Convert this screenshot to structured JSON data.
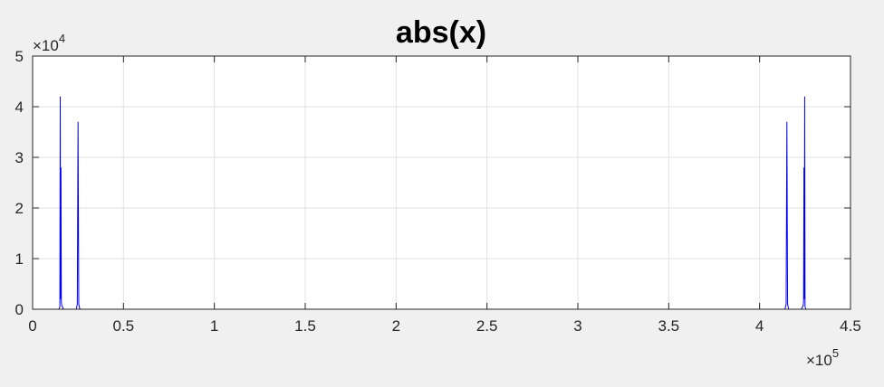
{
  "chart_data": {
    "type": "line",
    "title": "abs(x)",
    "xlabel": "",
    "ylabel": "",
    "xlim": [
      0,
      450000
    ],
    "ylim": [
      0,
      50000
    ],
    "grid": true,
    "line_color": "#0000ff",
    "x_ticks": [
      0,
      50000,
      100000,
      150000,
      200000,
      250000,
      300000,
      350000,
      400000,
      450000
    ],
    "x_tick_labels": [
      "0",
      "0.5",
      "1",
      "1.5",
      "2",
      "2.5",
      "3",
      "3.5",
      "4",
      "4.5"
    ],
    "y_ticks": [
      0,
      10000,
      20000,
      30000,
      40000,
      50000
    ],
    "y_tick_labels": [
      "0",
      "1",
      "2",
      "3",
      "4",
      "5"
    ],
    "x_exponent": {
      "base": "×10",
      "power": "5"
    },
    "y_exponent": {
      "base": "×10",
      "power": "4"
    },
    "series": [
      {
        "values_x": [
          0,
          14500,
          15000,
          15200,
          15400,
          15600,
          15800,
          16000,
          16200,
          16500,
          17000,
          24000,
          24600,
          25000,
          25400,
          26000,
          414000,
          414600,
          415000,
          415400,
          416000,
          423000,
          423500,
          423800,
          424000,
          424200,
          424400,
          424600,
          424800,
          425000,
          425500,
          441000
        ],
        "values_y": [
          0,
          0,
          500,
          42000,
          2000,
          28000,
          1500,
          800,
          600,
          400,
          0,
          0,
          1000,
          37000,
          1000,
          0,
          0,
          1000,
          37000,
          1000,
          0,
          0,
          400,
          600,
          800,
          1500,
          28000,
          2000,
          42000,
          500,
          0,
          0
        ]
      }
    ]
  }
}
